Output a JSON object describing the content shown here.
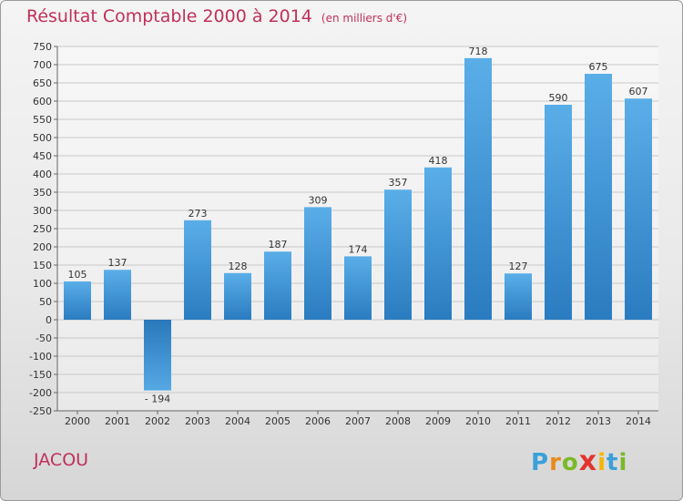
{
  "chart_data": {
    "type": "bar",
    "title": "Résultat Comptable 2000 à 2014",
    "subtitle": "(en milliers d'€)",
    "xlabel": "",
    "ylabel": "",
    "categories": [
      "2000",
      "2001",
      "2002",
      "2003",
      "2004",
      "2005",
      "2006",
      "2007",
      "2008",
      "2009",
      "2010",
      "2011",
      "2012",
      "2013",
      "2014"
    ],
    "values": [
      105,
      137,
      -194,
      273,
      128,
      187,
      309,
      174,
      357,
      418,
      718,
      127,
      590,
      675,
      607
    ],
    "value_labels": [
      "105",
      "137",
      "- 194",
      "273",
      "128",
      "187",
      "309",
      "174",
      "357",
      "418",
      "718",
      "127",
      "590",
      "675",
      "607"
    ],
    "ylim": [
      -250,
      750
    ],
    "yticks": [
      750,
      700,
      650,
      600,
      550,
      500,
      450,
      400,
      350,
      300,
      250,
      200,
      150,
      100,
      50,
      0,
      -50,
      -100,
      -150,
      -200,
      -250
    ],
    "ytick_labels": [
      "750",
      "700",
      "650",
      "600",
      "550",
      "500",
      "450",
      "400",
      "350",
      "300",
      "250",
      "200",
      "150",
      "100",
      "50",
      "0",
      "-50",
      "-100",
      "-150",
      "-200",
      "-250"
    ],
    "grid": true,
    "colors": {
      "bar_positive": "#4f9fde",
      "bar_negative": "#2f7fc0",
      "grid": "#c8c8c8"
    }
  },
  "footer": {
    "city": "JACOU",
    "brand_letters": [
      "P",
      "r",
      "o",
      "x",
      "i",
      "t",
      "i"
    ],
    "brand_colors": [
      "#3aa0d8",
      "#e98a1f",
      "#7ab928",
      "#e2342d",
      "#f2b705",
      "#3aa0d8",
      "#7ab928"
    ]
  }
}
